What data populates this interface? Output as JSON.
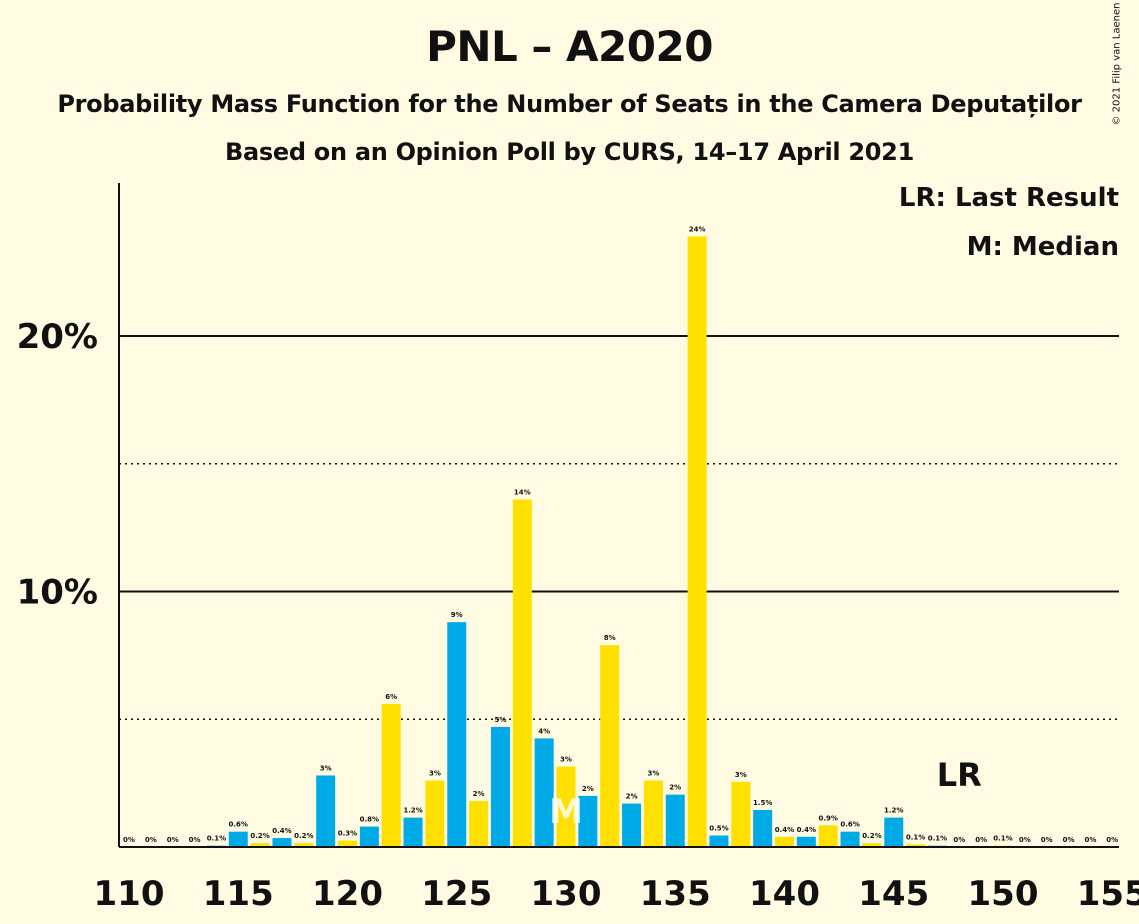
{
  "header": {
    "title": "PNL – A2020",
    "subtitle": "Probability Mass Function for the Number of Seats in the Camera Deputaților",
    "subtitle2": "Based on an Opinion Poll by CURS, 14–17 April 2021",
    "copyright": "© 2021 Filip van Laenen"
  },
  "legend": {
    "lr": "LR: Last Result",
    "m": "M: Median"
  },
  "colors": {
    "background": "#fffbe3",
    "blue": "#00aae6",
    "yellow": "#ffe000",
    "text": "#111111"
  },
  "chart_data": {
    "type": "bar",
    "x": [
      110,
      111,
      112,
      113,
      114,
      115,
      116,
      117,
      118,
      119,
      120,
      121,
      122,
      123,
      124,
      125,
      126,
      127,
      128,
      129,
      130,
      131,
      132,
      133,
      134,
      135,
      136,
      137,
      138,
      139,
      140,
      141,
      142,
      143,
      144,
      145,
      146,
      147,
      148,
      149,
      150,
      151,
      152,
      153,
      154,
      155
    ],
    "values": [
      0,
      0,
      0,
      0,
      0.1,
      0.6,
      0.2,
      0.4,
      0.2,
      3,
      0.3,
      0.8,
      6,
      1.2,
      3,
      9,
      2,
      5,
      14,
      4,
      3,
      2,
      8,
      2,
      3,
      2,
      24,
      0.5,
      3,
      1.5,
      0.4,
      0.4,
      0.9,
      0.6,
      0.2,
      1.2,
      0.1,
      0.1,
      0,
      0,
      0.1,
      0,
      0,
      0,
      0,
      0
    ],
    "heights": [
      0,
      0,
      0,
      0,
      0.05,
      0.6,
      0.15,
      0.35,
      0.15,
      2.8,
      0.25,
      0.8,
      5.6,
      1.15,
      2.6,
      8.8,
      1.8,
      4.7,
      13.6,
      4.25,
      3.15,
      2.0,
      7.9,
      1.7,
      2.6,
      2.05,
      23.9,
      0.45,
      2.55,
      1.45,
      0.4,
      0.4,
      0.85,
      0.6,
      0.15,
      1.15,
      0.1,
      0.05,
      0,
      0,
      0.05,
      0,
      0,
      0,
      0,
      0
    ],
    "labels": [
      "0%",
      "0%",
      "0%",
      "0%",
      "0.1%",
      "0.6%",
      "0.2%",
      "0.4%",
      "0.2%",
      "3%",
      "0.3%",
      "0.8%",
      "6%",
      "1.2%",
      "3%",
      "9%",
      "2%",
      "5%",
      "14%",
      "4%",
      "3%",
      "2%",
      "8%",
      "2%",
      "3%",
      "2%",
      "24%",
      "0.5%",
      "3%",
      "1.5%",
      "0.4%",
      "0.4%",
      "0.9%",
      "0.6%",
      "0.2%",
      "1.2%",
      "0.1%",
      "0.1%",
      "0%",
      "0%",
      "0.1%",
      "0%",
      "0%",
      "0%",
      "0%",
      "0%"
    ],
    "colors": [
      "blue",
      "yellow",
      "blue",
      "yellow",
      "blue",
      "blue",
      "yellow",
      "blue",
      "yellow",
      "blue",
      "yellow",
      "blue",
      "yellow",
      "blue",
      "yellow",
      "blue",
      "yellow",
      "blue",
      "yellow",
      "blue",
      "yellow",
      "blue",
      "yellow",
      "blue",
      "yellow",
      "blue",
      "yellow",
      "blue",
      "yellow",
      "blue",
      "yellow",
      "blue",
      "yellow",
      "blue",
      "yellow",
      "blue",
      "yellow",
      "blue",
      "yellow",
      "blue",
      "yellow",
      "blue",
      "yellow",
      "blue",
      "yellow",
      "blue"
    ],
    "xticks": [
      110,
      115,
      120,
      125,
      130,
      135,
      140,
      145,
      150,
      155
    ],
    "xtick_labels": [
      "110",
      "115",
      "120",
      "125",
      "130",
      "135",
      "140",
      "145",
      "150",
      "155"
    ],
    "yticks_solid": [
      10,
      20
    ],
    "ytick_labels": [
      "10%",
      "20%"
    ],
    "yticks_dotted": [
      5,
      15
    ],
    "ylim": [
      0,
      26
    ],
    "median": 130,
    "median_label": "M",
    "last_result": 148,
    "last_result_label": "LR"
  }
}
